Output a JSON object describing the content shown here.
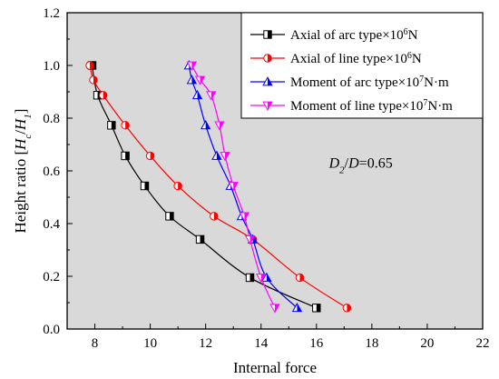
{
  "chart_data": {
    "type": "line",
    "xlabel": "Internal force",
    "ylabel_parts": [
      "Height ratio [",
      "H",
      "c",
      "/",
      "H",
      "1",
      "]"
    ],
    "xlim": [
      7,
      22
    ],
    "ylim": [
      0.0,
      1.2
    ],
    "xticks": [
      "8",
      "10",
      "12",
      "14",
      "16",
      "18",
      "20",
      "22"
    ],
    "yticks": [
      "0.0",
      "0.2",
      "0.4",
      "0.6",
      "0.8",
      "1.0",
      "1.2"
    ],
    "grid": false,
    "plot_background": "#d9d9d9",
    "legend_position": "top-right",
    "annotation": {
      "parts": [
        "D",
        "2",
        "/",
        "D",
        "=0.65"
      ],
      "x": 17.6,
      "y": 0.63
    },
    "series": [
      {
        "name_parts": [
          "Axial of arc type×10",
          "6",
          "N"
        ],
        "color": "#000000",
        "marker": "square-half",
        "x": [
          7.9,
          8.1,
          8.6,
          9.1,
          9.8,
          10.7,
          11.8,
          13.6,
          16.0
        ],
        "y": [
          1.0,
          0.887,
          0.773,
          0.657,
          0.543,
          0.428,
          0.34,
          0.195,
          0.08
        ]
      },
      {
        "name_parts": [
          "Axial of line type×10",
          "6",
          "N"
        ],
        "color": "#ff0000",
        "marker": "circle-half",
        "x": [
          7.82,
          7.95,
          8.3,
          9.1,
          10.0,
          11.0,
          12.3,
          13.7,
          15.4,
          17.1
        ],
        "y": [
          1.0,
          0.945,
          0.887,
          0.773,
          0.657,
          0.543,
          0.428,
          0.34,
          0.195,
          0.08
        ]
      },
      {
        "name_parts": [
          "Moment of arc type×10",
          "7",
          "N·m"
        ],
        "color": "#0000ff",
        "marker": "triangle-up-half",
        "x": [
          11.4,
          11.5,
          11.7,
          12.0,
          12.4,
          12.9,
          13.3,
          13.7,
          14.2,
          15.3
        ],
        "y": [
          1.0,
          0.945,
          0.887,
          0.773,
          0.657,
          0.543,
          0.428,
          0.34,
          0.195,
          0.08
        ]
      },
      {
        "name_parts": [
          "Moment of line type×10",
          "7",
          "N·m"
        ],
        "color": "#ff00ff",
        "marker": "triangle-down-half",
        "x": [
          11.5,
          11.8,
          12.2,
          12.5,
          12.7,
          13.0,
          13.4,
          13.6,
          14.0,
          14.5
        ],
        "y": [
          1.0,
          0.945,
          0.887,
          0.773,
          0.657,
          0.543,
          0.428,
          0.34,
          0.195,
          0.08
        ]
      }
    ]
  }
}
